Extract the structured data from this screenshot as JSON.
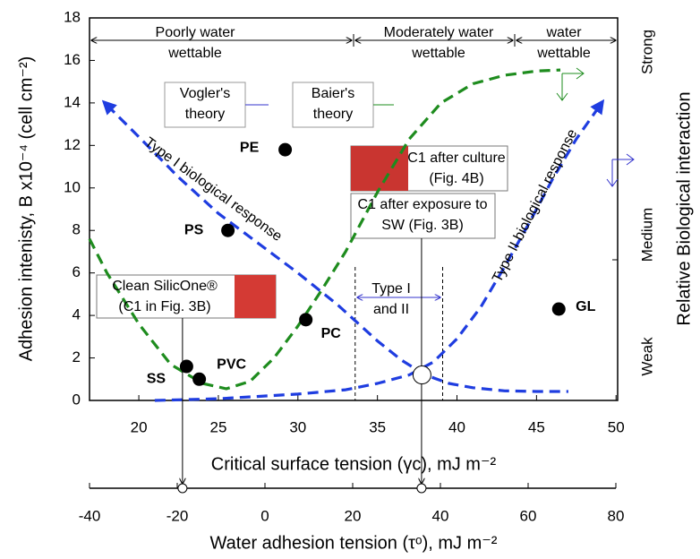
{
  "chart_data": {
    "type": "scatter",
    "y_label": "Adhesion intenisty, B x10⁻⁴ (cell cm⁻²)",
    "x_label": "Critical surface tension (γc), mJ m⁻²",
    "x2_label": "Water adhesion tension (τᵒ), mJ m⁻²",
    "y2_label": "Relative Biological interaction",
    "y2_categories": [
      "Weak",
      "Medium",
      "Strong"
    ],
    "xlim": [
      16.9,
      50.1
    ],
    "xticks": [
      20,
      25,
      30,
      35,
      40,
      45,
      50
    ],
    "ylim": [
      0,
      18
    ],
    "yticks": [
      0,
      2,
      4,
      6,
      8,
      10,
      12,
      14,
      16,
      18
    ],
    "x2lim": [
      -40,
      80
    ],
    "x2ticks": [
      -40,
      -20,
      0,
      20,
      40,
      60,
      80
    ],
    "point_labels": [
      "PE",
      "PS",
      "PC",
      "SS",
      "PVC",
      "GL"
    ],
    "x": [
      29.2,
      25.6,
      30.5,
      23.0,
      23.8,
      46.4
    ],
    "values": [
      11.8,
      8.0,
      3.8,
      1.6,
      1.0,
      4.3
    ],
    "point_color": "#000000",
    "curves": [
      {
        "color": "#1e8c1e",
        "x": [
          16.9,
          18,
          20,
          22,
          24,
          25.5,
          27,
          28.5,
          30,
          31.5,
          33,
          35,
          37,
          39,
          41,
          43,
          45,
          46.5
        ],
        "values": [
          7.6,
          6.0,
          3.6,
          1.7,
          0.8,
          0.55,
          0.9,
          2.0,
          3.5,
          5.2,
          7.0,
          9.8,
          12.3,
          14.0,
          14.9,
          15.3,
          15.5,
          15.55
        ]
      },
      {
        "color": "#1f3de0",
        "x": [
          18,
          20,
          22.5,
          25,
          27.5,
          30,
          32.5,
          35,
          36.5,
          38,
          39.5,
          41,
          43,
          45,
          47
        ],
        "values": [
          13.9,
          12.4,
          10.5,
          8.8,
          7.4,
          6.0,
          4.5,
          2.8,
          1.9,
          1.2,
          0.8,
          0.6,
          0.45,
          0.42,
          0.42
        ]
      },
      {
        "color": "#1f3de0",
        "x": [
          21,
          25,
          30,
          33,
          35,
          37,
          38.5,
          40,
          41.5,
          43,
          44.5,
          46,
          47.5,
          49
        ],
        "values": [
          0.0,
          0.08,
          0.3,
          0.5,
          0.8,
          1.2,
          1.8,
          2.9,
          4.4,
          6.3,
          8.3,
          10.4,
          12.3,
          13.9
        ]
      }
    ],
    "type_range": [
      33.6,
      39.1
    ],
    "crossover": {
      "x": 37.8,
      "y": 1.2
    },
    "x2_markers": [
      -18.8,
      35.7
    ],
    "regions": [
      [
        "Poorly water",
        "wettable"
      ],
      [
        "Moderately water",
        "wettable"
      ],
      [
        "water",
        "wettable"
      ]
    ],
    "annotations": {
      "vogler": [
        "Vogler's",
        "theory"
      ],
      "baier": [
        "Baier's",
        "theory"
      ],
      "type1": "Type I biological response",
      "type2": "Type II biological response",
      "type12": [
        "Type I",
        "and II"
      ],
      "culture": [
        "C1 after culture",
        "(Fig. 4B)"
      ],
      "exposure": [
        "C1 after exposure to",
        "SW (Fig. 3B)"
      ],
      "clean": [
        "Clean SilicOne®",
        "(C1 in Fig. 3B)"
      ]
    }
  }
}
